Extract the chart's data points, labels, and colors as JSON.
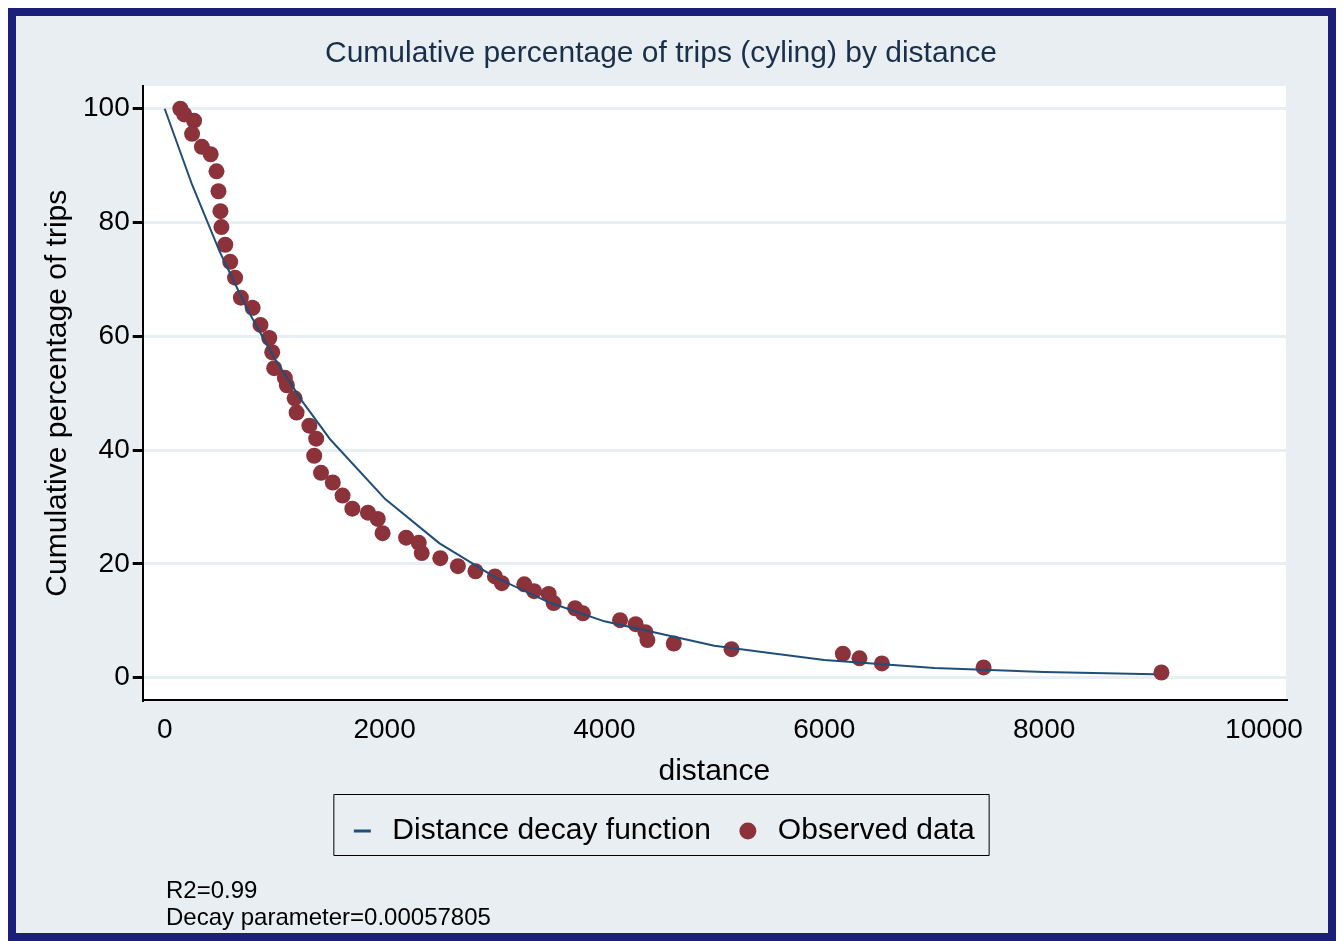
{
  "chart_data": {
    "type": "scatter",
    "title": "Cumulative percentage of trips (cyling) by distance",
    "xlabel": "distance",
    "ylabel": "Cumulative percentage of trips",
    "xlim": [
      -200,
      10200
    ],
    "xticks": [
      0,
      2000,
      4000,
      6000,
      8000,
      10000
    ],
    "ylim": [
      -4,
      104
    ],
    "yticks": [
      0,
      20,
      40,
      60,
      80,
      100
    ],
    "grid": "y",
    "legend": "bottom",
    "series": [
      {
        "name": "Distance decay function",
        "type": "line",
        "color": "#1f4e79",
        "marker": "none",
        "x": [
          0,
          250,
          500,
          750,
          1000,
          1250,
          1500,
          2000,
          2500,
          3000,
          3500,
          4000,
          5000,
          6000,
          7000,
          8000,
          9000
        ],
        "values": [
          100,
          86.6,
          74.9,
          64.8,
          56.1,
          48.6,
          42.0,
          31.5,
          23.6,
          17.7,
          13.2,
          9.9,
          5.6,
          3.1,
          1.7,
          1.0,
          0.6
        ]
      },
      {
        "name": "Observed data",
        "type": "scatter",
        "color": "#8b323b",
        "marker": "circle",
        "x": [
          142,
          178,
          267,
          249,
          338,
          418,
          471,
          489,
          507,
          516,
          551,
          596,
          640,
          693,
          800,
          871,
          951,
          978,
          996,
          1093,
          1111,
          1182,
          1200,
          1316,
          1378,
          1360,
          1422,
          1529,
          1618,
          1707,
          1849,
          1938,
          1982,
          2196,
          2311,
          2338,
          2507,
          2667,
          2827,
          3004,
          3067,
          3271,
          3360,
          3493,
          3538,
          3733,
          3804,
          4142,
          4284,
          4373,
          4391,
          4631,
          5156,
          6169,
          6320,
          6524,
          7449,
          9067
        ],
        "values": [
          100,
          99,
          97.9,
          95.6,
          93.3,
          92,
          89,
          85.5,
          82,
          79.2,
          76.1,
          73.1,
          70.3,
          66.8,
          65,
          62,
          59.7,
          57.2,
          54.4,
          52.7,
          51.4,
          49.1,
          46.6,
          44.3,
          42,
          39,
          36,
          34.3,
          32,
          29.7,
          29,
          27.9,
          25.4,
          24.6,
          23.7,
          21.9,
          21,
          19.6,
          18.7,
          17.8,
          16.6,
          16.4,
          15.2,
          14.7,
          13.1,
          12.2,
          11.3,
          10.1,
          9.4,
          8,
          6.6,
          6,
          5,
          4.2,
          3.4,
          2.5,
          1.8,
          0.9
        ]
      }
    ],
    "annotations": [
      "R2=0.99",
      "Decay parameter=0.00057805"
    ]
  }
}
